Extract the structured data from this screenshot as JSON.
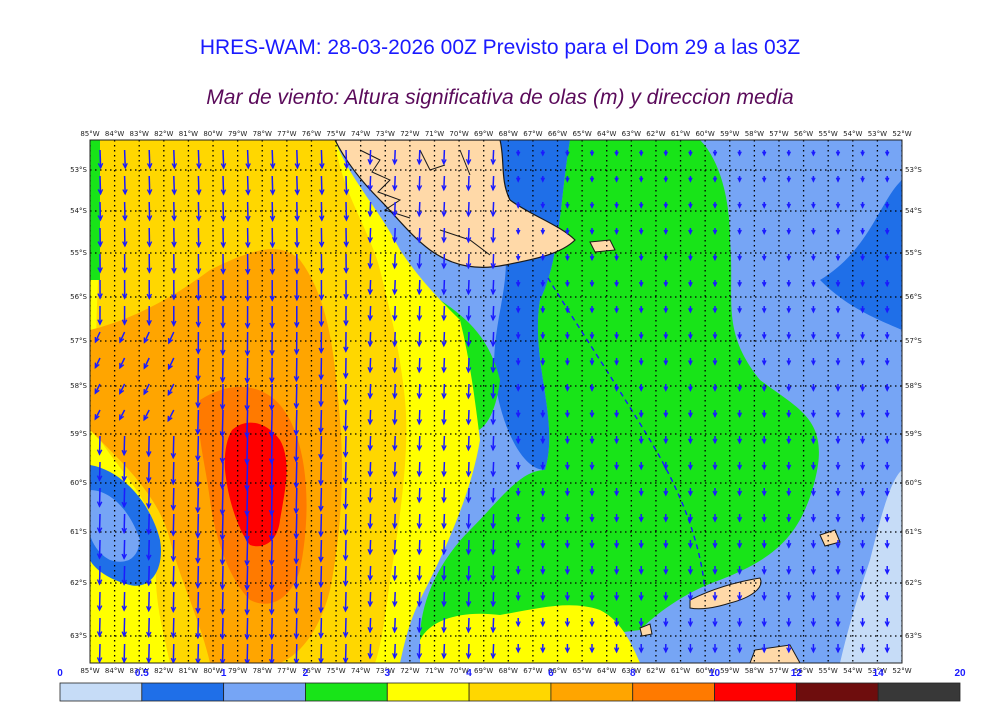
{
  "title": "HRES-WAM: 28-03-2026 00Z Previsto para el Dom 29 a las 03Z",
  "subtitle": "Mar de viento: Altura significativa de olas (m) y direccion media",
  "lon_labels": [
    "85°W",
    "84°W",
    "83°W",
    "82°W",
    "81°W",
    "80°W",
    "79°W",
    "78°W",
    "77°W",
    "76°W",
    "75°W",
    "74°W",
    "73°W",
    "72°W",
    "71°W",
    "70°W",
    "69°W",
    "68°W",
    "67°W",
    "66°W",
    "65°W",
    "64°W",
    "63°W",
    "62°W",
    "61°W",
    "60°W",
    "59°W",
    "58°W",
    "57°W",
    "56°W",
    "55°W",
    "54°W",
    "53°W",
    "52°W"
  ],
  "lat_labels": [
    "53°S",
    "54°S",
    "55°S",
    "56°S",
    "57°S",
    "58°S",
    "59°S",
    "60°S",
    "61°S",
    "62°S",
    "63°S"
  ],
  "colorbar": {
    "labels": [
      "0",
      "0.5",
      "1",
      "2",
      "3",
      "4",
      "6",
      "8",
      "10",
      "12",
      "14",
      "20"
    ],
    "colors": [
      "#c6dcf7",
      "#1f6fe8",
      "#76a5f5",
      "#18e418",
      "#ffff00",
      "#ffd700",
      "#ffa500",
      "#ff7a00",
      "#ff0000",
      "#6e0d0d",
      "#383838"
    ]
  },
  "colors": {
    "land": "#ffd9a8",
    "coast": "#1a1a1a",
    "arrow": "#1a1aff",
    "grid": "#000000"
  }
}
